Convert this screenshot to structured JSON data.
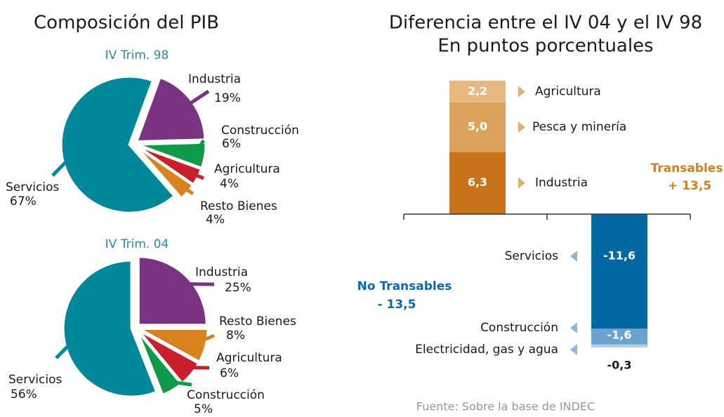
{
  "heading": "Composición del PIB",
  "source": "Fuente: Sobre la base de INDEC",
  "chart_data": [
    {
      "type": "pie",
      "subtitle": "IV Trim. 98",
      "categories": [
        "Industria",
        "Construcción",
        "Agricultura",
        "Resto Bienes",
        "Servicios"
      ],
      "values": [
        19,
        6,
        4,
        4,
        67
      ],
      "value_labels": [
        "19%",
        "6%",
        "4%",
        "4%",
        "67%"
      ],
      "colors": [
        "#7a3383",
        "#0e9a48",
        "#c8202a",
        "#d8811f",
        "#00879a"
      ]
    },
    {
      "type": "pie",
      "subtitle": "IV Trim. 04",
      "categories": [
        "Industria",
        "Resto Bienes",
        "Agricultura",
        "Construcción",
        "Servicios"
      ],
      "values": [
        25,
        8,
        6,
        5,
        56
      ],
      "value_labels": [
        "25%",
        "8%",
        "6%",
        "5%",
        "56%"
      ],
      "colors": [
        "#7a3383",
        "#d8811f",
        "#c8202a",
        "#0e9a48",
        "#00879a"
      ]
    },
    {
      "type": "bar",
      "title": "Diferencia entre el IV 04 y el IV 98",
      "subtitle": "En puntos porcentuales",
      "categories": [
        "Industria",
        "Pesca y minería",
        "Agricultura",
        "Servicios",
        "Construcción",
        "Electricidad, gas y agua"
      ],
      "values": [
        6.3,
        5.0,
        2.2,
        -11.6,
        -1.6,
        -0.3
      ],
      "value_labels": [
        "6,3",
        "5,0",
        "2,2",
        "-11,6",
        "-1,6",
        "-0,3"
      ],
      "colors": [
        "#c8731a",
        "#dba25a",
        "#e8b880",
        "#0067a5",
        "#6ba3cf",
        "#aecde8"
      ],
      "ylim": [
        -13.5,
        13.5
      ],
      "annotations": [
        {
          "lines": [
            "Transables",
            "+ 13,5"
          ],
          "color": "#d0801f"
        },
        {
          "lines": [
            "No Transables",
            "- 13,5"
          ],
          "color": "#0a6aad"
        }
      ]
    }
  ]
}
